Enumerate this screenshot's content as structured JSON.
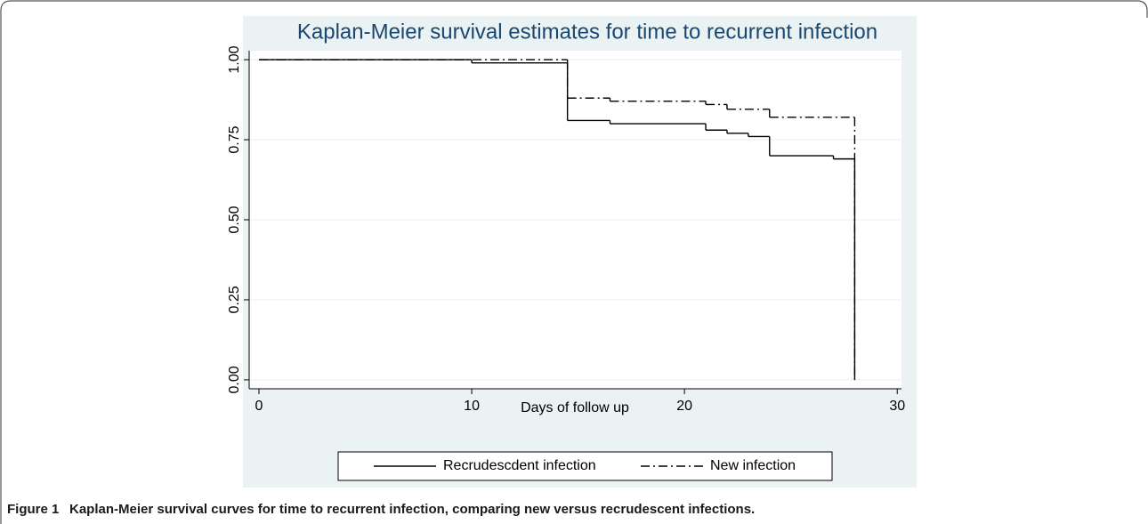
{
  "chart_data": {
    "type": "step",
    "title": "Kaplan-Meier survival estimates for time to recurrent infection",
    "x_label": "Days of follow up",
    "xlim": [
      -0.46,
      30.2
    ],
    "xticks": [
      0,
      10,
      20,
      30
    ],
    "ylim": [
      -0.028,
      1.028
    ],
    "yticks": [
      {
        "value": 0,
        "label": "0.00"
      },
      {
        "value": 0.25,
        "label": "0.25"
      },
      {
        "value": 0.5,
        "label": "0.50"
      },
      {
        "value": 0.75,
        "label": "0.75"
      },
      {
        "value": 1,
        "label": "1.00"
      }
    ],
    "grid": true,
    "legend_position": "bottom",
    "series": [
      {
        "name": "Recrudescdent infection",
        "color": "#000000",
        "dash": "solid",
        "x": [
          0,
          10,
          14.5,
          16.5,
          21,
          22,
          23,
          24,
          27,
          28
        ],
        "values": [
          1.0,
          0.99,
          0.81,
          0.8,
          0.78,
          0.77,
          0.76,
          0.7,
          0.69,
          0.0
        ]
      },
      {
        "name": "New infection",
        "color": "#000000",
        "dash": "dashdot",
        "x": [
          0,
          14.5,
          16.5,
          21,
          22,
          24,
          28
        ],
        "values": [
          1.0,
          0.88,
          0.87,
          0.86,
          0.845,
          0.82,
          0.0
        ]
      }
    ]
  },
  "caption": {
    "label": "Figure 1",
    "text": "Kaplan-Meier survival curves for time to recurrent infection, comparing new versus recrudescent infections."
  }
}
